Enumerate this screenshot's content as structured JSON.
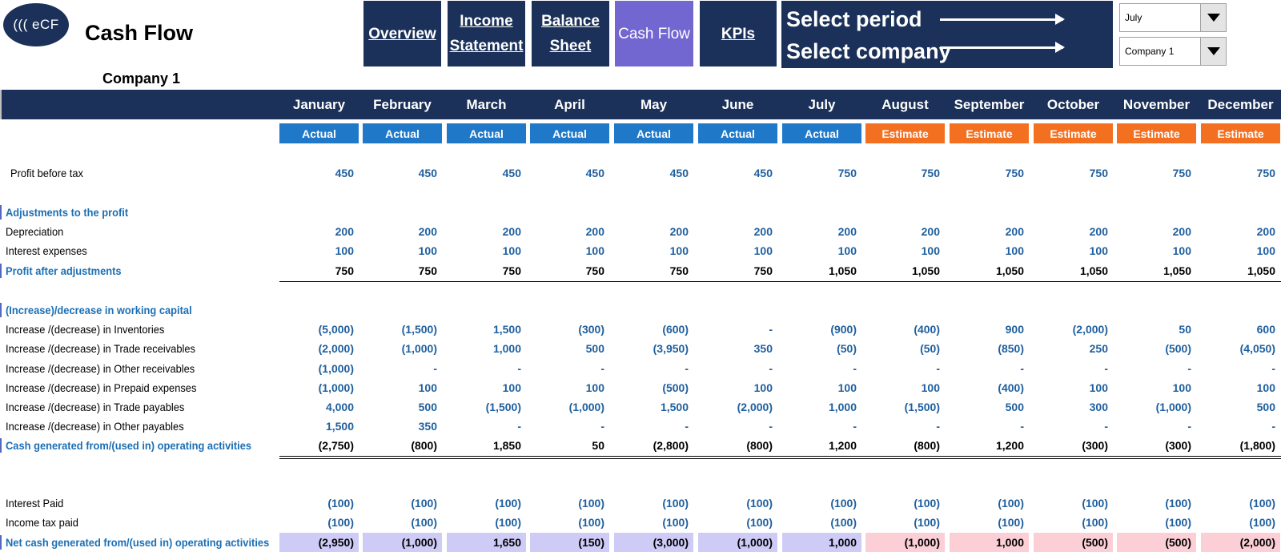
{
  "logo_text": "((( eCF",
  "title": "Cash Flow",
  "company_title": "Company 1",
  "nav": [
    {
      "label": "Overview",
      "active": false
    },
    {
      "label": "Income Statement",
      "active": false
    },
    {
      "label": "Balance Sheet",
      "active": false
    },
    {
      "label": "Cash Flow",
      "active": true
    },
    {
      "label": "KPIs",
      "active": false
    }
  ],
  "selectors": {
    "period_label": "Select period",
    "company_label": "Select company",
    "period_value": "July",
    "company_value": "Company 1"
  },
  "colors": {
    "navy": "#1b3159",
    "active_tab": "#7266d0",
    "actual_badge": "#1f78c8",
    "estimate_badge": "#f37021",
    "section_text": "#1b6fb5"
  },
  "months": [
    "January",
    "February",
    "March",
    "April",
    "May",
    "June",
    "July",
    "August",
    "September",
    "October",
    "November",
    "December"
  ],
  "types": [
    "Actual",
    "Actual",
    "Actual",
    "Actual",
    "Actual",
    "Actual",
    "Actual",
    "Estimate",
    "Estimate",
    "Estimate",
    "Estimate",
    "Estimate"
  ],
  "rows": [
    {
      "label": "Profit  before tax",
      "kind": "value",
      "values": [
        "450",
        "450",
        "450",
        "450",
        "450",
        "450",
        "750",
        "750",
        "750",
        "750",
        "750",
        "750"
      ]
    },
    {
      "label": "Adjustments to the profit",
      "kind": "section"
    },
    {
      "label": "Depreciation",
      "kind": "value",
      "values": [
        "200",
        "200",
        "200",
        "200",
        "200",
        "200",
        "200",
        "200",
        "200",
        "200",
        "200",
        "200"
      ]
    },
    {
      "label": "Interest expenses",
      "kind": "value",
      "values": [
        "100",
        "100",
        "100",
        "100",
        "100",
        "100",
        "100",
        "100",
        "100",
        "100",
        "100",
        "100"
      ]
    },
    {
      "label": "Profit after adjustments",
      "kind": "total",
      "values": [
        "750",
        "750",
        "750",
        "750",
        "750",
        "750",
        "1,050",
        "1,050",
        "1,050",
        "1,050",
        "1,050",
        "1,050"
      ]
    },
    {
      "label": "(Increase)/decrease in working capital",
      "kind": "section"
    },
    {
      "label": "Increase /(decrease) in Inventories",
      "kind": "value",
      "values": [
        "(5,000)",
        "(1,500)",
        "1,500",
        "(300)",
        "(600)",
        "-",
        "(900)",
        "(400)",
        "900",
        "(2,000)",
        "50",
        "600"
      ]
    },
    {
      "label": "Increase /(decrease) in Trade receivables",
      "kind": "value",
      "values": [
        "(2,000)",
        "(1,000)",
        "1,000",
        "500",
        "(3,950)",
        "350",
        "(50)",
        "(50)",
        "(850)",
        "250",
        "(500)",
        "(4,050)"
      ]
    },
    {
      "label": "Increase /(decrease) in Other receivables",
      "kind": "value",
      "values": [
        "(1,000)",
        "-",
        "-",
        "-",
        "-",
        "-",
        "-",
        "-",
        "-",
        "-",
        "-",
        "-"
      ]
    },
    {
      "label": "Increase /(decrease) in Prepaid expenses",
      "kind": "value",
      "values": [
        "(1,000)",
        "100",
        "100",
        "100",
        "(500)",
        "100",
        "100",
        "100",
        "(400)",
        "100",
        "100",
        "100"
      ]
    },
    {
      "label": "Increase /(decrease) in Trade payables",
      "kind": "value",
      "values": [
        "4,000",
        "500",
        "(1,500)",
        "(1,000)",
        "1,500",
        "(2,000)",
        "1,000",
        "(1,500)",
        "500",
        "300",
        "(1,000)",
        "500"
      ]
    },
    {
      "label": "Increase /(decrease) in Other payables",
      "kind": "value",
      "values": [
        "1,500",
        "350",
        "-",
        "-",
        "-",
        "-",
        "-",
        "-",
        "-",
        "-",
        "-",
        "-"
      ]
    },
    {
      "label": "Cash generated from/(used in) operating activities",
      "kind": "total",
      "values": [
        "(2,750)",
        "(800)",
        "1,850",
        "50",
        "(2,800)",
        "(800)",
        "1,200",
        "(800)",
        "1,200",
        "(300)",
        "(300)",
        "(1,800)"
      ]
    },
    {
      "label": "Interest Paid",
      "kind": "value",
      "values": [
        "(100)",
        "(100)",
        "(100)",
        "(100)",
        "(100)",
        "(100)",
        "(100)",
        "(100)",
        "(100)",
        "(100)",
        "(100)",
        "(100)"
      ]
    },
    {
      "label": "Income tax paid",
      "kind": "value",
      "values": [
        "(100)",
        "(100)",
        "(100)",
        "(100)",
        "(100)",
        "(100)",
        "(100)",
        "(100)",
        "(100)",
        "(100)",
        "(100)",
        "(100)"
      ]
    },
    {
      "label": "Net cash generated from/(used in) operating activities",
      "kind": "net",
      "values": [
        "(2,950)",
        "(1,000)",
        "1,650",
        "(150)",
        "(3,000)",
        "(1,000)",
        "1,000",
        "(1,000)",
        "1,000",
        "(500)",
        "(500)",
        "(2,000)"
      ]
    }
  ]
}
